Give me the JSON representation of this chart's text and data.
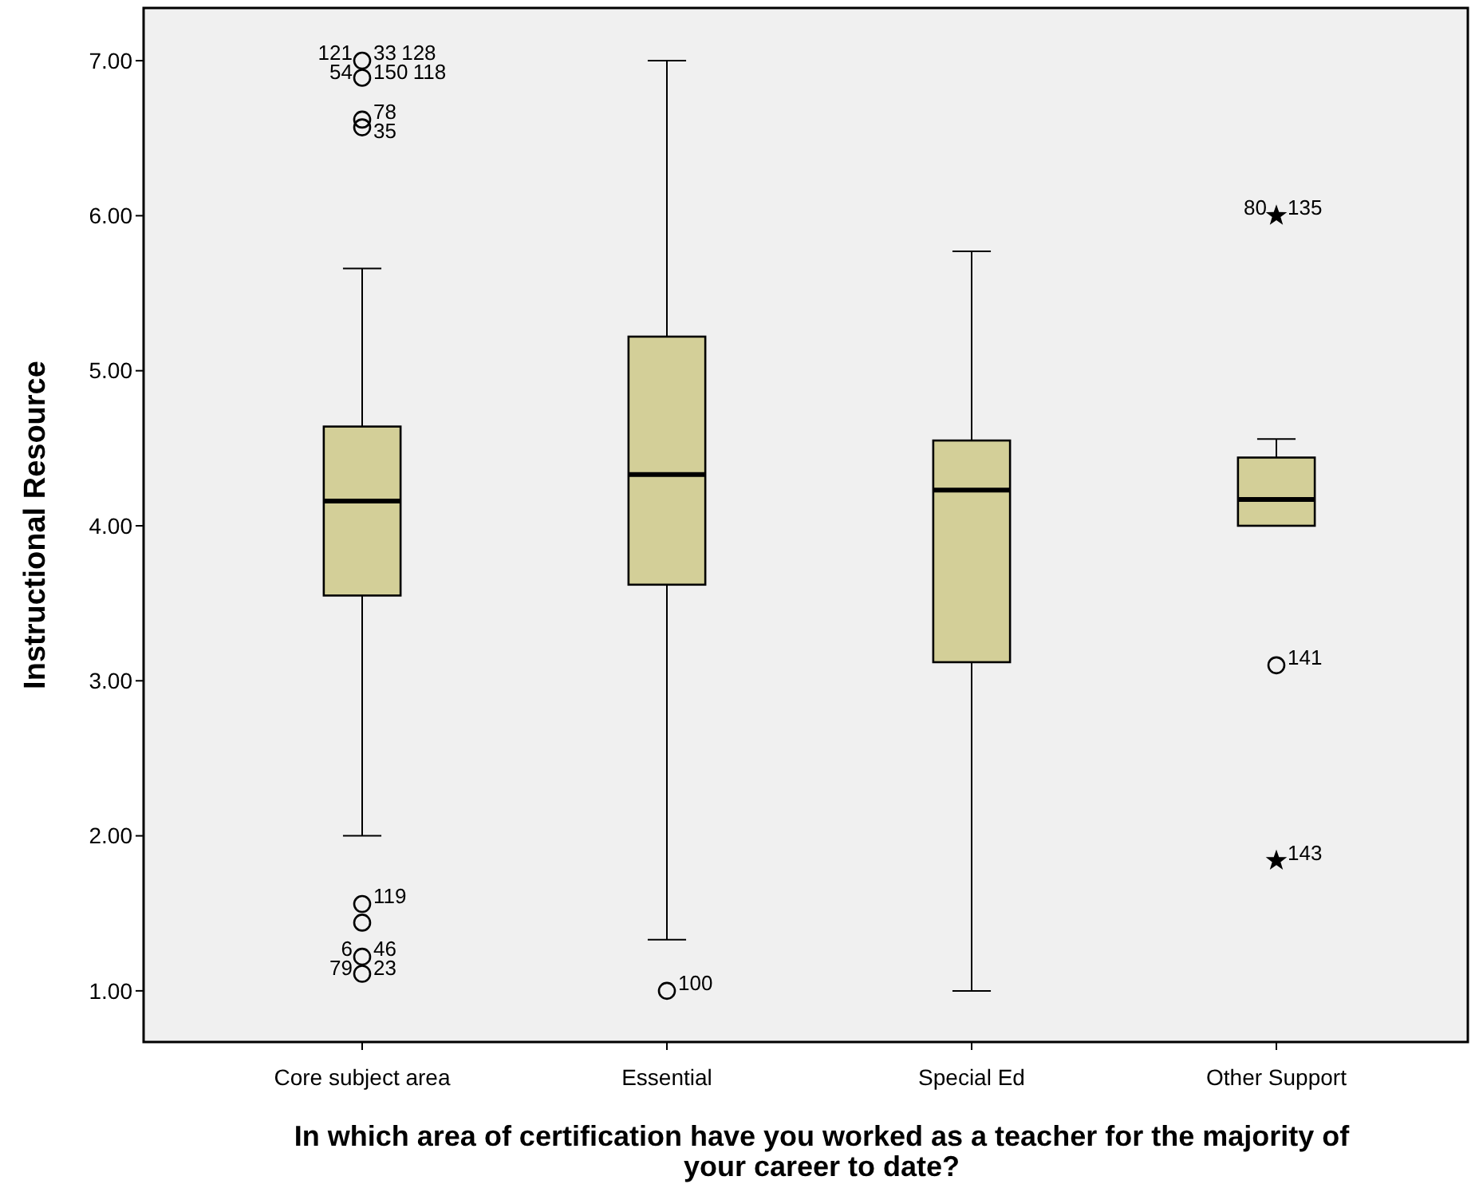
{
  "chart_data": {
    "type": "box",
    "xlabel": "In which area of certification have you worked as a teacher for the majority of your career to date?",
    "ylabel": "Instructional Resource",
    "categories": [
      "Core subject area",
      "Essential",
      "Special Ed",
      "Other Support"
    ],
    "ylim": [
      0.67,
      7.34
    ],
    "yticks": [
      {
        "value": 1,
        "label": "1.00"
      },
      {
        "value": 2,
        "label": "2.00"
      },
      {
        "value": 3,
        "label": "3.00"
      },
      {
        "value": 4,
        "label": "4.00"
      },
      {
        "value": 5,
        "label": "5.00"
      },
      {
        "value": 6,
        "label": "6.00"
      },
      {
        "value": 7,
        "label": "7.00"
      }
    ],
    "grid": false,
    "series": [
      {
        "color": "#d3cf98",
        "boxes": [
          {
            "low": 2.0,
            "q1": 3.55,
            "median": 4.16,
            "q3": 4.64,
            "high": 5.66
          },
          {
            "low": 1.33,
            "q1": 3.62,
            "median": 4.33,
            "q3": 5.22,
            "high": 7.0
          },
          {
            "low": 1.0,
            "q1": 3.12,
            "median": 4.23,
            "q3": 4.55,
            "high": 5.77
          },
          {
            "low": 4.0,
            "q1": 4.0,
            "median": 4.17,
            "q3": 4.44,
            "high": 4.56
          }
        ]
      },
      {
        "type": "scatter",
        "marker": "circle",
        "color": "#000000",
        "x": [
          "Core subject area",
          "Core subject area",
          "Core subject area",
          "Core subject area",
          "Core subject area",
          "Core subject area",
          "Core subject area",
          "Core subject area",
          "Essential",
          "Other Support"
        ],
        "values": [
          7.0,
          6.89,
          6.62,
          6.57,
          1.56,
          1.44,
          1.22,
          1.11,
          1.0,
          3.1
        ]
      },
      {
        "type": "scatter",
        "marker": "star",
        "color": "#000000",
        "x": [
          "Other Support",
          "Other Support"
        ],
        "values": [
          6.0,
          1.84
        ]
      }
    ],
    "annotations": [
      {
        "text": "121",
        "x": "Core subject area",
        "y": 7.0
      },
      {
        "text": "33",
        "x": "Core subject area",
        "y": 7.0
      },
      {
        "text": "128",
        "x": "Core subject area",
        "y": 7.0
      },
      {
        "text": "54",
        "x": "Core subject area",
        "y": 6.89
      },
      {
        "text": "150",
        "x": "Core subject area",
        "y": 6.89
      },
      {
        "text": "118",
        "x": "Core subject area",
        "y": 6.89
      },
      {
        "text": "78",
        "x": "Core subject area",
        "y": 6.62
      },
      {
        "text": "35",
        "x": "Core subject area",
        "y": 6.57
      },
      {
        "text": "119",
        "x": "Core subject area",
        "y": 1.56
      },
      {
        "text": "6",
        "x": "Core subject area",
        "y": 1.22
      },
      {
        "text": "46",
        "x": "Core subject area",
        "y": 1.22
      },
      {
        "text": "79",
        "x": "Core subject area",
        "y": 1.11
      },
      {
        "text": "23",
        "x": "Core subject area",
        "y": 1.11
      },
      {
        "text": "100",
        "x": "Essential",
        "y": 1.0
      },
      {
        "text": "80",
        "x": "Other Support",
        "y": 6.0
      },
      {
        "text": "135",
        "x": "Other Support",
        "y": 6.0
      },
      {
        "text": "141",
        "x": "Other Support",
        "y": 3.1
      },
      {
        "text": "143",
        "x": "Other Support",
        "y": 1.84
      }
    ]
  }
}
